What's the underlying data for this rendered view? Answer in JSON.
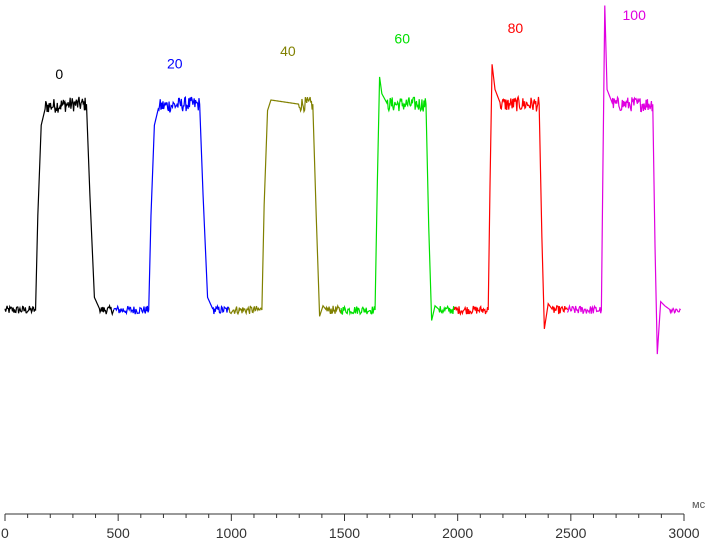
{
  "chart_data": {
    "type": "line",
    "title": "",
    "xlabel": "",
    "x_unit": "мс",
    "ylabel": "",
    "xlim": [
      0,
      3000
    ],
    "ylim": [
      0,
      1
    ],
    "x_ticks": [
      0,
      500,
      1000,
      1500,
      2000,
      2500,
      3000
    ],
    "x_tick_labels": [
      "0",
      "500",
      "1000",
      "1500",
      "2000",
      "2500",
      "3000"
    ],
    "grid": false,
    "legend": "inline labels above each pulse",
    "series": [
      {
        "name": "0",
        "color": "#000000",
        "x": [
          0,
          135,
          145,
          160,
          180,
          300,
          360,
          375,
          395,
          420,
          480
        ],
        "y": [
          0,
          0,
          0.45,
          0.88,
          0.97,
          0.98,
          0.98,
          0.55,
          0.06,
          0,
          0
        ]
      },
      {
        "name": "20",
        "color": "#0000ff",
        "x": [
          480,
          635,
          645,
          660,
          680,
          800,
          860,
          875,
          895,
          920,
          990
        ],
        "y": [
          0,
          0,
          0.45,
          0.88,
          0.97,
          0.98,
          0.98,
          0.55,
          0.06,
          0,
          0
        ]
      },
      {
        "name": "40",
        "color": "#808000",
        "x": [
          990,
          1135,
          1145,
          1160,
          1175,
          1300,
          1360,
          1375,
          1390,
          1405,
          1420,
          1485
        ],
        "y": [
          0,
          0,
          0.5,
          0.95,
          1.0,
          0.98,
          0.98,
          0.45,
          -0.03,
          0.02,
          0,
          0
        ]
      },
      {
        "name": "60",
        "color": "#00e000",
        "x": [
          1485,
          1635,
          1645,
          1655,
          1665,
          1690,
          1800,
          1860,
          1872,
          1885,
          1900,
          1920,
          1985
        ],
        "y": [
          0,
          0,
          0.6,
          1.11,
          1.03,
          0.98,
          0.98,
          0.98,
          0.4,
          -0.05,
          0.02,
          0,
          0
        ]
      },
      {
        "name": "80",
        "color": "#ff0000",
        "x": [
          1985,
          2135,
          2143,
          2152,
          2165,
          2190,
          2300,
          2360,
          2372,
          2383,
          2400,
          2420,
          2485
        ],
        "y": [
          0,
          0,
          0.6,
          1.17,
          1.05,
          0.98,
          0.98,
          0.98,
          0.35,
          -0.09,
          0.03,
          0,
          0
        ]
      },
      {
        "name": "100",
        "color": "#e000e0",
        "x": [
          2485,
          2635,
          2642,
          2650,
          2660,
          2685,
          2800,
          2862,
          2872,
          2882,
          2897,
          2915,
          2940,
          2985
        ],
        "y": [
          0,
          0,
          0.7,
          1.45,
          1.05,
          0.98,
          0.98,
          0.98,
          0.3,
          -0.21,
          0.04,
          0.02,
          0,
          0
        ]
      }
    ],
    "series_labels": [
      {
        "text": "0",
        "x": 240,
        "y": 1.1
      },
      {
        "text": "20",
        "x": 750,
        "y": 1.15
      },
      {
        "text": "40",
        "x": 1250,
        "y": 1.21
      },
      {
        "text": "60",
        "x": 1755,
        "y": 1.27
      },
      {
        "text": "80",
        "x": 2255,
        "y": 1.32
      },
      {
        "text": "100",
        "x": 2780,
        "y": 1.38
      }
    ]
  }
}
